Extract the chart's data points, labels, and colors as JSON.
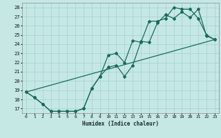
{
  "xlabel": "Humidex (Indice chaleur)",
  "bg_color": "#c5e8e5",
  "grid_color": "#a8d4d0",
  "line_color": "#1a6b58",
  "xlim": [
    -0.5,
    23.5
  ],
  "ylim": [
    16.5,
    28.5
  ],
  "xticks": [
    0,
    1,
    2,
    3,
    4,
    5,
    6,
    7,
    8,
    9,
    10,
    11,
    12,
    13,
    14,
    15,
    16,
    17,
    18,
    19,
    20,
    21,
    22,
    23
  ],
  "yticks": [
    17,
    18,
    19,
    20,
    21,
    22,
    23,
    24,
    25,
    26,
    27,
    28
  ],
  "line1_x": [
    0,
    1,
    2,
    3,
    4,
    5,
    6,
    7,
    8,
    9,
    10,
    11,
    12,
    13,
    14,
    15,
    16,
    17,
    18,
    19,
    20,
    21,
    22,
    23
  ],
  "line1_y": [
    18.8,
    18.2,
    17.5,
    16.7,
    16.7,
    16.7,
    16.7,
    17.0,
    19.2,
    20.5,
    21.5,
    21.7,
    20.5,
    21.7,
    24.3,
    24.2,
    26.3,
    27.2,
    26.8,
    27.5,
    26.9,
    27.8,
    24.9,
    24.5
  ],
  "line2_x": [
    0,
    1,
    2,
    3,
    4,
    5,
    6,
    7,
    8,
    9,
    10,
    11,
    12,
    13,
    14,
    15,
    16,
    17,
    18,
    19,
    20,
    21,
    22,
    23
  ],
  "line2_y": [
    18.8,
    18.2,
    17.5,
    16.7,
    16.7,
    16.7,
    16.7,
    17.0,
    19.2,
    20.5,
    22.8,
    23.0,
    22.0,
    24.4,
    24.2,
    26.5,
    26.5,
    26.8,
    28.0,
    27.8,
    27.8,
    26.8,
    25.0,
    24.5
  ],
  "line3_x": [
    0,
    23
  ],
  "line3_y": [
    18.8,
    24.5
  ]
}
